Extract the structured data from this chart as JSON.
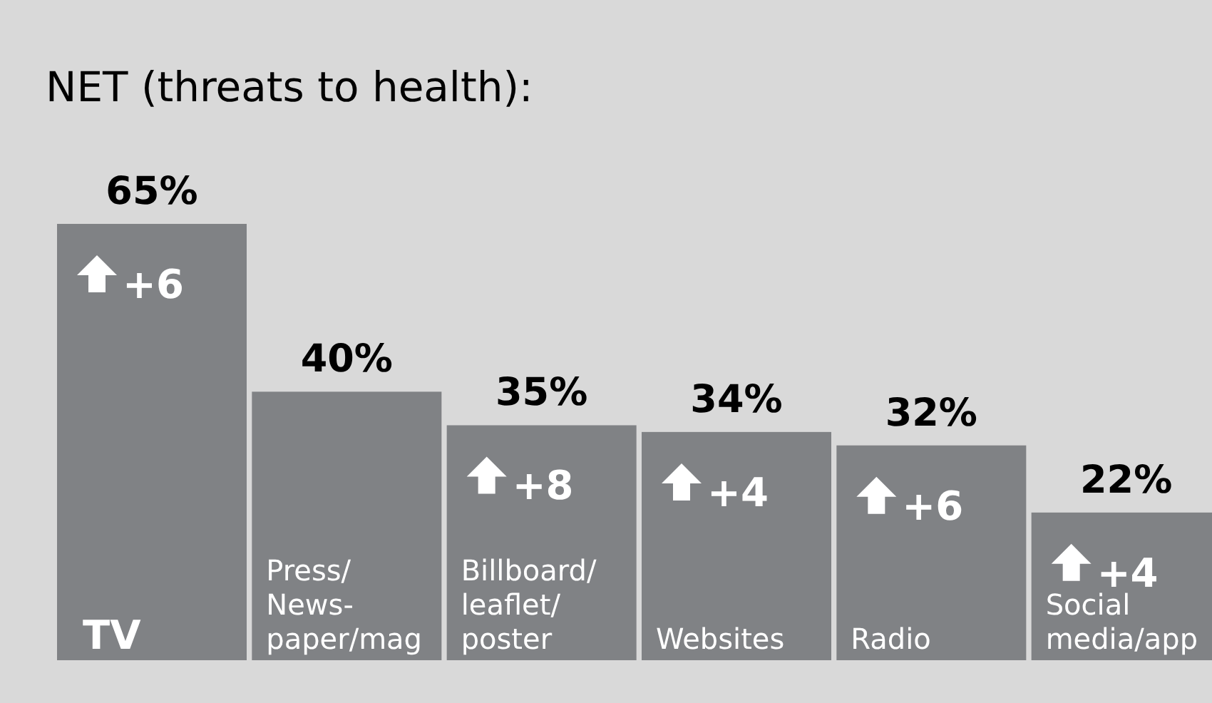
{
  "chart_data": {
    "type": "bar",
    "title": "NET (threats to health):",
    "categories": [
      "TV",
      "Press/\nNews-\npaper/mag",
      "Billboard/\nleaflet/\nposter",
      "Websites",
      "Radio",
      "Social\nmedia/app"
    ],
    "values": [
      65,
      40,
      35,
      34,
      32,
      22
    ],
    "color": "#808285",
    "value_labels": [
      "65%",
      "40%",
      "35%",
      "34%",
      "32%",
      "22%"
    ],
    "annotations": [
      {
        "text": "+6",
        "x": "TV",
        "y": 65
      },
      {
        "text": "+8",
        "x": "Billboard/\nleaflet/\nposter",
        "y": 35
      },
      {
        "text": "+4",
        "x": "Websites",
        "y": 34
      },
      {
        "text": "+6",
        "x": "Radio",
        "y": 32
      },
      {
        "text": "+4",
        "x": "Social\nmedia/app",
        "y": 22
      }
    ],
    "grid": false,
    "legend": false
  }
}
